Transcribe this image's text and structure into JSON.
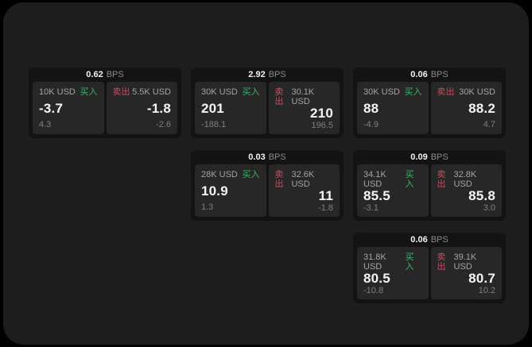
{
  "page": {
    "background_color": "#000000",
    "panel_color": "#1d1d1d"
  },
  "colors": {
    "card_bg": "#131313",
    "tile_bg": "#272727",
    "text_primary": "#f5f5f5",
    "text_secondary": "#a3a3a3",
    "text_muted": "#7f7f7f",
    "buy_green": "#3bb662",
    "sell_red": "#cf4a5f"
  },
  "labels": {
    "bps_suffix": "BPS",
    "buy": "买入",
    "sell": "卖出"
  },
  "cards": [
    {
      "row": 1,
      "col": 1,
      "bps": "0.62",
      "buy": {
        "size": "10K USD",
        "value": "-3.7",
        "delta": "4.3"
      },
      "sell": {
        "size": "5.5K USD",
        "value": "-1.8",
        "delta": "-2.6"
      }
    },
    {
      "row": 1,
      "col": 2,
      "bps": "2.92",
      "buy": {
        "size": "30K USD",
        "value": "201",
        "delta": "-188.1"
      },
      "sell": {
        "size": "30.1K USD",
        "value": "210",
        "delta": "196.5"
      }
    },
    {
      "row": 1,
      "col": 3,
      "bps": "0.06",
      "buy": {
        "size": "30K USD",
        "value": "88",
        "delta": "-4.9"
      },
      "sell": {
        "size": "30K USD",
        "value": "88.2",
        "delta": "4.7"
      }
    },
    {
      "row": 2,
      "col": 2,
      "bps": "0.03",
      "buy": {
        "size": "28K USD",
        "value": "10.9",
        "delta": "1.3"
      },
      "sell": {
        "size": "32.6K USD",
        "value": "11",
        "delta": "-1.8"
      }
    },
    {
      "row": 2,
      "col": 3,
      "bps": "0.09",
      "buy": {
        "size": "34.1K USD",
        "value": "85.5",
        "delta": "-3.1"
      },
      "sell": {
        "size": "32.8K USD",
        "value": "85.8",
        "delta": "3.0"
      }
    },
    {
      "row": 3,
      "col": 3,
      "bps": "0.06",
      "buy": {
        "size": "31.8K USD",
        "value": "80.5",
        "delta": "-10.8"
      },
      "sell": {
        "size": "39.1K USD",
        "value": "80.7",
        "delta": "10.2"
      }
    }
  ]
}
